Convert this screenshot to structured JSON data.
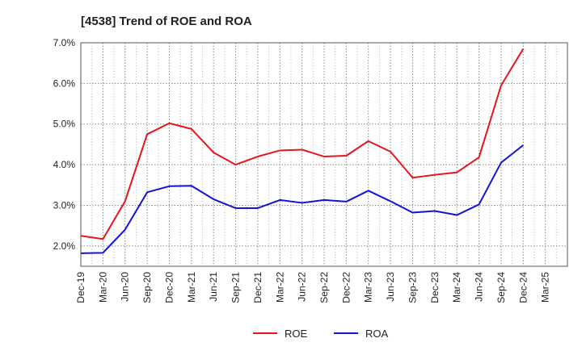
{
  "chart_data": {
    "type": "line",
    "title": "[4538]  Trend of ROE and ROA",
    "xlabel": "",
    "ylabel": "",
    "x": [
      "Dec-19",
      "Mar-20",
      "Jun-20",
      "Sep-20",
      "Dec-20",
      "Mar-21",
      "Jun-21",
      "Sep-21",
      "Dec-21",
      "Mar-22",
      "Jun-22",
      "Sep-22",
      "Dec-22",
      "Mar-23",
      "Jun-23",
      "Sep-23",
      "Dec-23",
      "Mar-24",
      "Jun-24",
      "Sep-24",
      "Dec-24",
      "Mar-25"
    ],
    "y_ticks": [
      "2.0%",
      "3.0%",
      "4.0%",
      "5.0%",
      "6.0%",
      "7.0%"
    ],
    "ylim": [
      1.5,
      7.0
    ],
    "grid": true,
    "legend_position": "bottom-center",
    "series": [
      {
        "name": "ROE",
        "color": "#e8131b",
        "values": [
          2.25,
          2.17,
          3.1,
          4.75,
          5.02,
          4.88,
          4.3,
          4.0,
          4.2,
          4.35,
          4.37,
          4.2,
          4.22,
          4.58,
          4.32,
          3.68,
          3.75,
          3.81,
          4.18,
          5.95,
          6.85,
          null
        ]
      },
      {
        "name": "ROA",
        "color": "#1212d9",
        "values": [
          1.82,
          1.83,
          2.4,
          3.32,
          3.47,
          3.48,
          3.15,
          2.93,
          2.93,
          3.13,
          3.06,
          3.13,
          3.09,
          3.36,
          3.1,
          2.82,
          2.86,
          2.76,
          3.02,
          4.05,
          4.48,
          null
        ]
      }
    ]
  }
}
